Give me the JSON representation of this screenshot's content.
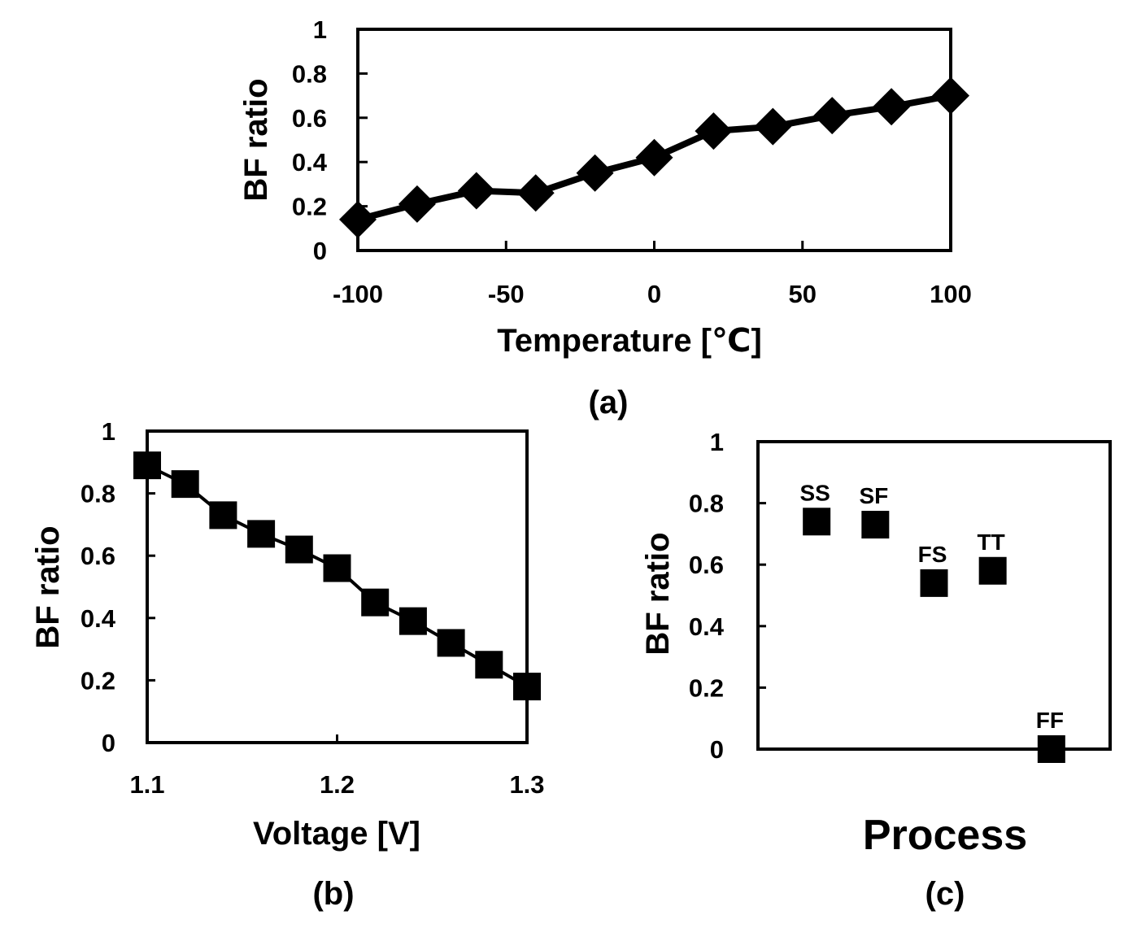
{
  "chart_data": [
    {
      "type": "line",
      "caption": "(a)",
      "xlabel": "Temperature [℃]",
      "ylabel": "BF ratio",
      "xlim": [
        -100,
        100
      ],
      "ylim": [
        0,
        1
      ],
      "xticks": [
        -100,
        -50,
        0,
        50,
        100
      ],
      "xtick_labels": [
        "-100",
        "-50",
        "0",
        "50",
        "100"
      ],
      "yticks": [
        0,
        0.2,
        0.4,
        0.6,
        0.8,
        1
      ],
      "ytick_labels": [
        "0",
        "0.2",
        "0.4",
        "0.6",
        "0.8",
        "1"
      ],
      "marker": "diamond",
      "grid": false,
      "x": [
        -100,
        -80,
        -60,
        -40,
        -20,
        0,
        20,
        40,
        60,
        80,
        100
      ],
      "y": [
        0.14,
        0.21,
        0.27,
        0.26,
        0.35,
        0.42,
        0.54,
        0.56,
        0.61,
        0.65,
        0.7
      ]
    },
    {
      "type": "line",
      "caption": "(b)",
      "xlabel": "Voltage [V]",
      "ylabel": "BF ratio",
      "xlim": [
        1.1,
        1.3
      ],
      "ylim": [
        0,
        1
      ],
      "xticks": [
        1.1,
        1.2,
        1.3
      ],
      "xtick_labels": [
        "1.1",
        "1.2",
        "1.3"
      ],
      "yticks": [
        0,
        0.2,
        0.4,
        0.6,
        0.8,
        1
      ],
      "ytick_labels": [
        "0",
        "0.2",
        "0.4",
        "0.6",
        "0.8",
        "1"
      ],
      "marker": "square",
      "grid": false,
      "x": [
        1.1,
        1.12,
        1.14,
        1.16,
        1.18,
        1.2,
        1.22,
        1.24,
        1.26,
        1.28,
        1.3
      ],
      "y": [
        0.89,
        0.83,
        0.73,
        0.67,
        0.62,
        0.56,
        0.45,
        0.39,
        0.32,
        0.25,
        0.18
      ]
    },
    {
      "type": "scatter",
      "caption": "(c)",
      "xlabel": "Process",
      "ylabel": "BF ratio",
      "xlim": [
        0,
        6
      ],
      "ylim": [
        0,
        1
      ],
      "yticks": [
        0,
        0.2,
        0.4,
        0.6,
        0.8,
        1
      ],
      "ytick_labels": [
        "0",
        "0.2",
        "0.4",
        "0.6",
        "0.8",
        "1"
      ],
      "marker": "square",
      "grid": false,
      "categories": [
        "SS",
        "SF",
        "FS",
        "TT",
        "FF"
      ],
      "x": [
        1,
        2,
        3,
        4,
        5
      ],
      "y": [
        0.74,
        0.73,
        0.54,
        0.58,
        0.0
      ]
    }
  ]
}
